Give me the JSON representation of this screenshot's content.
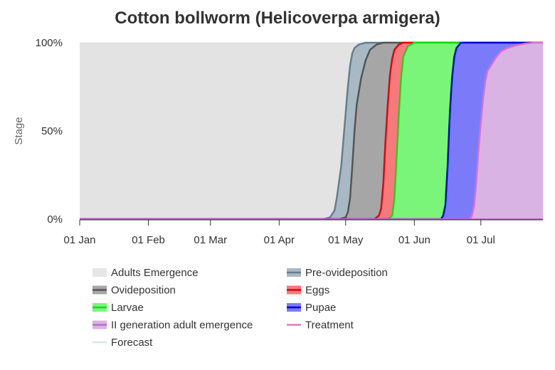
{
  "chart_data": {
    "type": "area",
    "title": "Cotton bollworm (Helicoverpa armigera)",
    "xlabel": "",
    "ylabel": "Stage",
    "x_range_days": [
      0,
      209
    ],
    "ylim": [
      0,
      100
    ],
    "y_ticks": [
      {
        "value": 0,
        "label": "0%"
      },
      {
        "value": 50,
        "label": "50%"
      },
      {
        "value": 100,
        "label": "100%"
      }
    ],
    "x_ticks": [
      {
        "day": 0,
        "label": "01 Jan"
      },
      {
        "day": 31,
        "label": "01 Feb"
      },
      {
        "day": 59,
        "label": "01 Mar"
      },
      {
        "day": 90,
        "label": "01 Apr"
      },
      {
        "day": 120,
        "label": "01 May"
      },
      {
        "day": 151,
        "label": "01 Jun"
      },
      {
        "day": 181,
        "label": "01 Jul"
      }
    ],
    "grid": true,
    "legend_position": "bottom",
    "series": [
      {
        "name": "Adults Emergence",
        "color": "#e3e3e3",
        "line": "#e3e3e3",
        "points": [
          [
            0,
            100
          ],
          [
            209,
            100
          ]
        ]
      },
      {
        "name": "Pre-ovideposition",
        "color": "#a9b9c3",
        "line": "#627f8f",
        "points": [
          [
            0,
            0
          ],
          [
            110,
            0
          ],
          [
            113,
            1
          ],
          [
            115,
            5
          ],
          [
            116,
            12
          ],
          [
            118,
            30
          ],
          [
            119,
            45
          ],
          [
            120,
            60
          ],
          [
            121,
            75
          ],
          [
            122,
            87
          ],
          [
            123,
            94
          ],
          [
            124,
            97
          ],
          [
            126,
            99
          ],
          [
            129,
            100
          ],
          [
            209,
            100
          ]
        ]
      },
      {
        "name": "Ovideposition",
        "color": "#a6a6a6",
        "line": "#555555",
        "points": [
          [
            0,
            0
          ],
          [
            117,
            0
          ],
          [
            120,
            1
          ],
          [
            121,
            4
          ],
          [
            122,
            12
          ],
          [
            123,
            30
          ],
          [
            124,
            50
          ],
          [
            125,
            65
          ],
          [
            127,
            80
          ],
          [
            129,
            90
          ],
          [
            131,
            96
          ],
          [
            134,
            99
          ],
          [
            137,
            100
          ],
          [
            209,
            100
          ]
        ]
      },
      {
        "name": "Eggs",
        "color": "#f47b7b",
        "line": "#e8000a",
        "points": [
          [
            0,
            0
          ],
          [
            133,
            0
          ],
          [
            135,
            2
          ],
          [
            136,
            6
          ],
          [
            137,
            20
          ],
          [
            138,
            45
          ],
          [
            139,
            65
          ],
          [
            140,
            82
          ],
          [
            141,
            91
          ],
          [
            142,
            96
          ],
          [
            144,
            99
          ],
          [
            146,
            100
          ],
          [
            209,
            100
          ]
        ]
      },
      {
        "name": "Larvae",
        "color": "#7af57a",
        "line": "#16d916",
        "points": [
          [
            0,
            0
          ],
          [
            139,
            0
          ],
          [
            141,
            2
          ],
          [
            142,
            12
          ],
          [
            143,
            35
          ],
          [
            144,
            60
          ],
          [
            145,
            80
          ],
          [
            146,
            92
          ],
          [
            148,
            98
          ],
          [
            151,
            100
          ],
          [
            209,
            100
          ]
        ]
      },
      {
        "name": "Pupae",
        "color": "#7b7bfa",
        "line": "#0000d9",
        "points": [
          [
            0,
            0
          ],
          [
            163,
            0
          ],
          [
            164,
            2
          ],
          [
            165,
            8
          ],
          [
            166,
            30
          ],
          [
            167,
            60
          ],
          [
            168,
            80
          ],
          [
            169,
            92
          ],
          [
            170,
            97
          ],
          [
            172,
            100
          ],
          [
            209,
            100
          ]
        ]
      },
      {
        "name": "II generation adult emergence",
        "color": "#d9b3e3",
        "line": "#e06fc1",
        "points": [
          [
            0,
            0
          ],
          [
            176,
            0
          ],
          [
            177,
            2
          ],
          [
            178,
            8
          ],
          [
            179,
            22
          ],
          [
            180,
            40
          ],
          [
            181,
            55
          ],
          [
            182,
            68
          ],
          [
            183,
            78
          ],
          [
            184,
            84
          ],
          [
            186,
            88
          ],
          [
            188,
            92
          ],
          [
            190,
            95
          ],
          [
            193,
            97
          ],
          [
            197,
            98.5
          ],
          [
            201,
            99.5
          ],
          [
            205,
            100
          ],
          [
            209,
            100
          ]
        ]
      }
    ],
    "legend": [
      {
        "label": "Adults Emergence",
        "fill": "#e6e6e6",
        "stroke": "#e6e6e6"
      },
      {
        "label": "Pre-ovideposition",
        "fill": "#a9b9c3",
        "stroke": "#627f8f"
      },
      {
        "label": "Ovideposition",
        "fill": "#a6a6a6",
        "stroke": "#555555"
      },
      {
        "label": "Eggs",
        "fill": "#f47b7b",
        "stroke": "#e8000a"
      },
      {
        "label": "Larvae",
        "fill": "#7af57a",
        "stroke": "#16d916"
      },
      {
        "label": "Pupae",
        "fill": "#7b7bfa",
        "stroke": "#0000d9"
      },
      {
        "label": "II generation adult emergence",
        "fill": "#d9b3e3",
        "stroke": "#b56fd0"
      },
      {
        "label": "Treatment",
        "fill": "none",
        "stroke": "#e27bbd"
      },
      {
        "label": "Forecast",
        "fill": "none",
        "stroke": "#cfe8f0"
      }
    ]
  }
}
